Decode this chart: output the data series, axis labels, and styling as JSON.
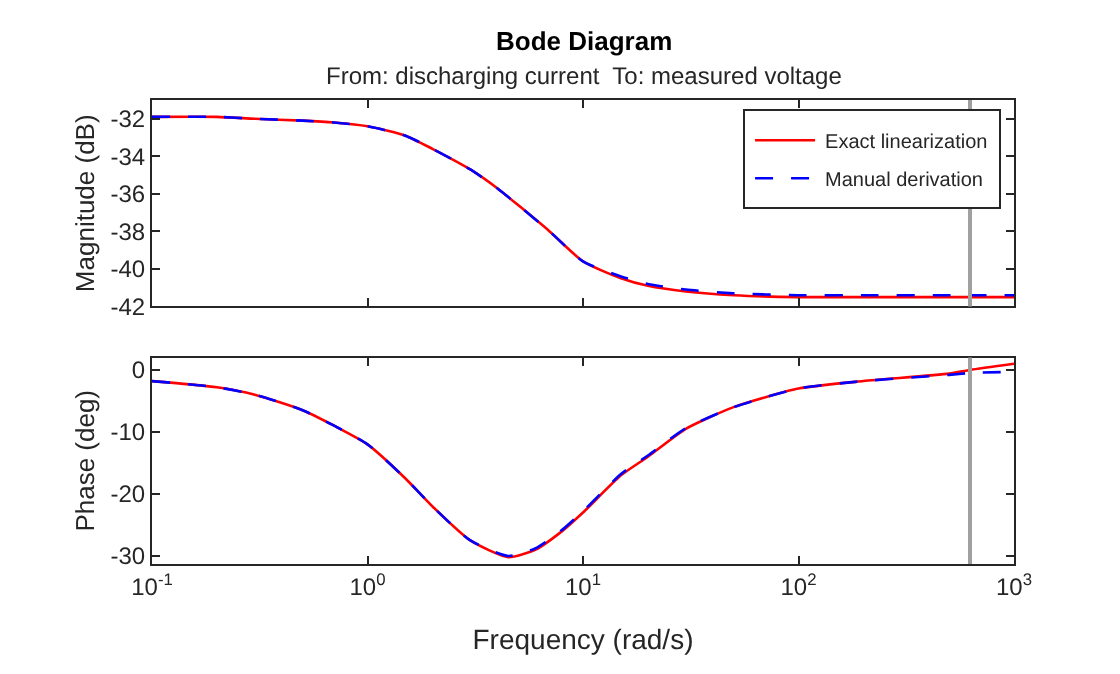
{
  "chart_data": [
    {
      "type": "line",
      "title": "Bode Diagram",
      "subtitle": "From: discharging current  To: measured voltage",
      "ylabel": "Magnitude (dB)",
      "x": [
        0.1,
        0.2,
        0.3,
        0.5,
        0.7,
        1,
        1.5,
        2,
        3,
        4,
        5,
        7,
        10,
        15,
        20,
        30,
        50,
        100,
        200,
        500,
        1000
      ],
      "series": [
        {
          "name": "Exact linearization",
          "color": "#ff0000",
          "line_style": "solid",
          "values": [
            -31.9,
            -31.9,
            -32.0,
            -32.1,
            -32.2,
            -32.4,
            -32.9,
            -33.6,
            -34.7,
            -35.7,
            -36.6,
            -38.0,
            -39.6,
            -40.5,
            -40.9,
            -41.2,
            -41.4,
            -41.5,
            -41.5,
            -41.5,
            -41.5
          ]
        },
        {
          "name": "Manual derivation",
          "color": "#0000ff",
          "line_style": "dashed",
          "values": [
            -31.9,
            -31.9,
            -32.0,
            -32.1,
            -32.2,
            -32.4,
            -32.9,
            -33.6,
            -34.7,
            -35.7,
            -36.6,
            -38.0,
            -39.6,
            -40.4,
            -40.8,
            -41.1,
            -41.3,
            -41.4,
            -41.4,
            -41.4,
            -41.4
          ]
        }
      ],
      "xlim": [
        0.1,
        1000
      ],
      "xticks": [
        {
          "value": 0.1,
          "label": null
        },
        {
          "value": 1,
          "label": null
        },
        {
          "value": 10,
          "label": null
        },
        {
          "value": 100,
          "label": null
        },
        {
          "value": 1000,
          "label": null
        }
      ],
      "ylim": [
        -42,
        -31
      ],
      "yticks": [
        -42,
        -40,
        -38,
        -36,
        -34,
        -32
      ],
      "log": "x",
      "legend": "top right",
      "tick_labels": "y",
      "ref_lines": [
        {
          "axis": "x",
          "value": 625,
          "label": null,
          "color": "#a0a0a0"
        }
      ]
    },
    {
      "type": "line",
      "xlabel": "Frequency (rad/s)",
      "ylabel": "Phase (deg)",
      "x": [
        0.1,
        0.2,
        0.3,
        0.5,
        0.7,
        1,
        1.5,
        2,
        3,
        4.5,
        6,
        8,
        10,
        15,
        20,
        30,
        50,
        100,
        200,
        500,
        625,
        1000
      ],
      "series": [
        {
          "color": "#ff0000",
          "line_style": "solid",
          "values": [
            -1.8,
            -2.8,
            -4.0,
            -6.5,
            -9.0,
            -12.0,
            -17.5,
            -22.0,
            -27.5,
            -30.2,
            -29.0,
            -26.0,
            -23.0,
            -17.0,
            -14.0,
            -9.5,
            -6.0,
            -3.0,
            -1.8,
            -0.6,
            0,
            1.0
          ]
        },
        {
          "color": "#0000ff",
          "line_style": "dashed",
          "values": [
            -1.8,
            -2.8,
            -4.0,
            -6.5,
            -9.0,
            -12.0,
            -17.5,
            -22.0,
            -27.5,
            -30.0,
            -28.8,
            -25.8,
            -22.8,
            -16.8,
            -13.8,
            -9.4,
            -6.0,
            -3.0,
            -1.8,
            -0.8,
            -0.5,
            -0.3
          ]
        }
      ],
      "xlim": [
        0.1,
        1000
      ],
      "xticks": [
        {
          "value": 0.1,
          "label": "10$^{-1}$"
        },
        {
          "value": 1,
          "label": "10$^{0}$"
        },
        {
          "value": 10,
          "label": "10$^{1}$"
        },
        {
          "value": 100,
          "label": "10$^{2}$"
        },
        {
          "value": 1000,
          "label": "10$^{3}$"
        }
      ],
      "ylim": [
        -31.3,
        2
      ],
      "yticks": [
        -30,
        -20,
        -10,
        0
      ],
      "log": "x",
      "legend": false,
      "ref_lines": [
        {
          "axis": "x",
          "value": 625,
          "label": null,
          "color": "#a0a0a0"
        }
      ]
    }
  ]
}
